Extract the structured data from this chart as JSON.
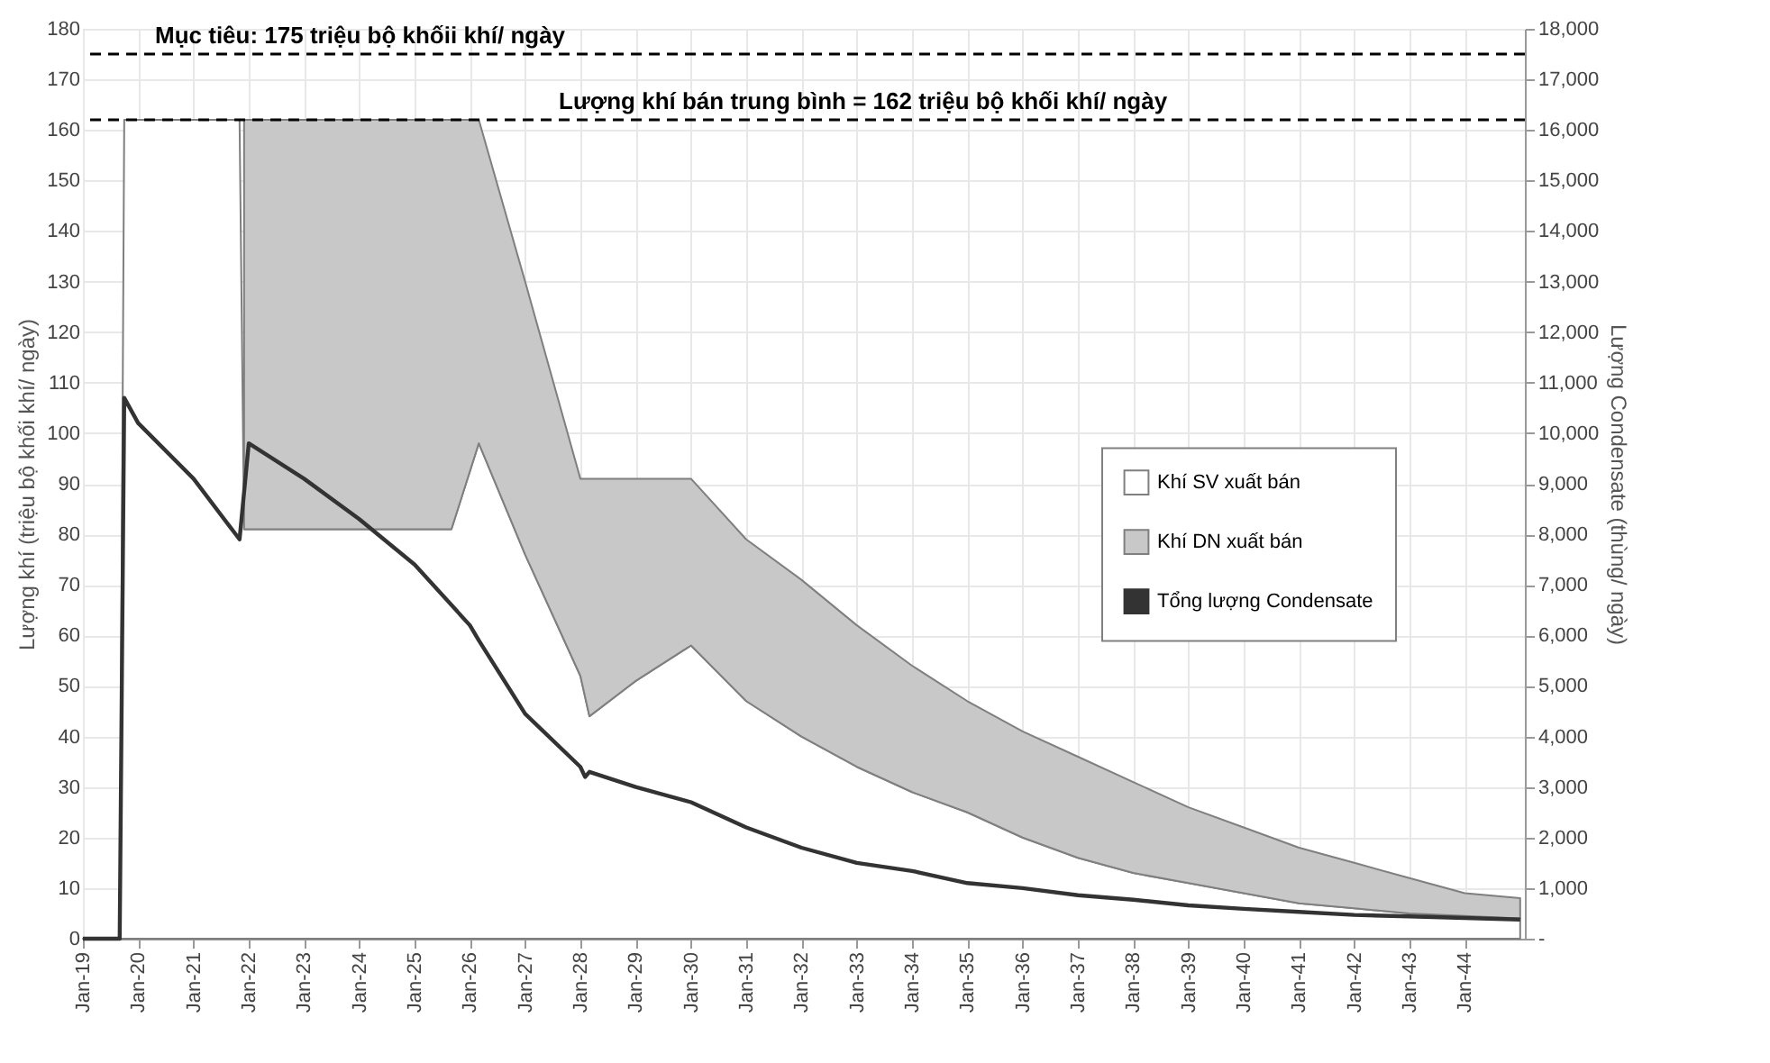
{
  "chart_data": {
    "type": "area",
    "stacked": true,
    "ylabel": "Lượng khí (triệu bộ khối khí/ ngày)",
    "y2label": "Lượng Condensate (thùng/ ngày)",
    "x": [
      "2019-01",
      "2019-09",
      "2019-10",
      "2021-11",
      "2021-12",
      "2025-09",
      "2026-03",
      "2027-01",
      "2028-01",
      "2028-03",
      "2029-01",
      "2030-01",
      "2031-01",
      "2032-01",
      "2033-01",
      "2034-01",
      "2035-01",
      "2036-01",
      "2037-01",
      "2038-01",
      "2039-01",
      "2040-01",
      "2041-01",
      "2042-01",
      "2043-01",
      "2044-01",
      "2045-01"
    ],
    "series": [
      {
        "name": "Khí SV xuất bán",
        "color": "#ffffff",
        "values": [
          0,
          0,
          162,
          162,
          81,
          81,
          98,
          76,
          52,
          44,
          51,
          58,
          47,
          40,
          34,
          29,
          25,
          20,
          16,
          13,
          11,
          9,
          7,
          6,
          5,
          4.5,
          4
        ]
      },
      {
        "name": "Khí DN xuất bán",
        "color": "#c8c8c8",
        "values": [
          null,
          null,
          null,
          null,
          81,
          81,
          64,
          54,
          39,
          47,
          40,
          33,
          32,
          31,
          28,
          25,
          22,
          21,
          20,
          18,
          15,
          13,
          11,
          9,
          7,
          4.5,
          4
        ]
      },
      {
        "name": "Tổng lượng Condensate",
        "type": "line",
        "axis": "y2",
        "color": "#333333",
        "x": [
          "2019-01",
          "2019-09",
          "2019-10",
          "2020-01",
          "2021-01",
          "2021-11",
          "2022-01",
          "2023-01",
          "2024-01",
          "2025-01",
          "2026-01",
          "2026-03",
          "2027-01",
          "2028-01",
          "2028-02",
          "2028-03",
          "2029-01",
          "2030-01",
          "2031-01",
          "2032-01",
          "2033-01",
          "2034-01",
          "2035-01",
          "2036-01",
          "2037-01",
          "2038-01",
          "2039-01",
          "2040-01",
          "2041-01",
          "2042-01",
          "2043-01",
          "2044-01",
          "2045-01"
        ],
        "values": [
          0,
          0,
          10700,
          10200,
          9100,
          7900,
          9800,
          9100,
          8300,
          7400,
          6200,
          5900,
          4450,
          3400,
          3200,
          3300,
          3000,
          2700,
          2200,
          1800,
          1500,
          1340,
          1100,
          1000,
          860,
          770,
          660,
          590,
          530,
          470,
          440,
          410,
          380
        ]
      }
    ],
    "xlim": [
      "2019-01",
      "2045-02"
    ],
    "xticks": [
      {
        "value": "2019-01",
        "label": "Jan-19"
      },
      {
        "value": "2020-01",
        "label": "Jan-20"
      },
      {
        "value": "2021-01",
        "label": "Jan-21"
      },
      {
        "value": "2022-01",
        "label": "Jan-22"
      },
      {
        "value": "2023-01",
        "label": "Jan-23"
      },
      {
        "value": "2024-01",
        "label": "Jan-24"
      },
      {
        "value": "2025-01",
        "label": "Jan-25"
      },
      {
        "value": "2026-01",
        "label": "Jan-26"
      },
      {
        "value": "2027-01",
        "label": "Jan-27"
      },
      {
        "value": "2028-01",
        "label": "Jan-28"
      },
      {
        "value": "2029-01",
        "label": "Jan-29"
      },
      {
        "value": "2030-01",
        "label": "Jan-30"
      },
      {
        "value": "2031-01",
        "label": "Jan-31"
      },
      {
        "value": "2032-01",
        "label": "Jan-32"
      },
      {
        "value": "2033-01",
        "label": "Jan-33"
      },
      {
        "value": "2034-01",
        "label": "Jan-34"
      },
      {
        "value": "2035-01",
        "label": "Jan-35"
      },
      {
        "value": "2036-01",
        "label": "Jan-36"
      },
      {
        "value": "2037-01",
        "label": "Jan-37"
      },
      {
        "value": "2038-01",
        "label": "Jan-38"
      },
      {
        "value": "2039-01",
        "label": "Jan-39"
      },
      {
        "value": "2040-01",
        "label": "Jan-40"
      },
      {
        "value": "2041-01",
        "label": "Jan-41"
      },
      {
        "value": "2042-01",
        "label": "Jan-42"
      },
      {
        "value": "2043-01",
        "label": "Jan-43"
      },
      {
        "value": "2044-01",
        "label": "Jan-44"
      }
    ],
    "ylim": [
      0,
      180
    ],
    "yticks": [
      0,
      10,
      20,
      30,
      40,
      50,
      60,
      70,
      80,
      90,
      100,
      110,
      120,
      130,
      140,
      150,
      160,
      170,
      180
    ],
    "y2lim": [
      0,
      18000
    ],
    "y2ticks": [
      {
        "value": 0,
        "label": "-"
      },
      {
        "value": 1000,
        "label": "1,000"
      },
      {
        "value": 2000,
        "label": "2,000"
      },
      {
        "value": 3000,
        "label": "3,000"
      },
      {
        "value": 4000,
        "label": "4,000"
      },
      {
        "value": 5000,
        "label": "5,000"
      },
      {
        "value": 6000,
        "label": "6,000"
      },
      {
        "value": 7000,
        "label": "7,000"
      },
      {
        "value": 8000,
        "label": "8,000"
      },
      {
        "value": 9000,
        "label": "9,000"
      },
      {
        "value": 10000,
        "label": "10,000"
      },
      {
        "value": 11000,
        "label": "11,000"
      },
      {
        "value": 12000,
        "label": "12,000"
      },
      {
        "value": 13000,
        "label": "13,000"
      },
      {
        "value": 14000,
        "label": "14,000"
      },
      {
        "value": 15000,
        "label": "15,000"
      },
      {
        "value": 16000,
        "label": "16,000"
      },
      {
        "value": 17000,
        "label": "17,000"
      },
      {
        "value": 18000,
        "label": "18,000"
      }
    ],
    "ref_lines": [
      {
        "axis": "y",
        "value": 175,
        "label": "Mục tiêu: 175 triệu bộ khốii khí/ ngày",
        "line_style": "dashed",
        "color": "#000000"
      },
      {
        "axis": "y",
        "value": 162,
        "label": "Lượng khí bán trung bình = 162 triệu bộ khối khí/ ngày",
        "line_style": "dashed",
        "color": "#000000"
      }
    ],
    "grid": true,
    "legend": "right"
  }
}
